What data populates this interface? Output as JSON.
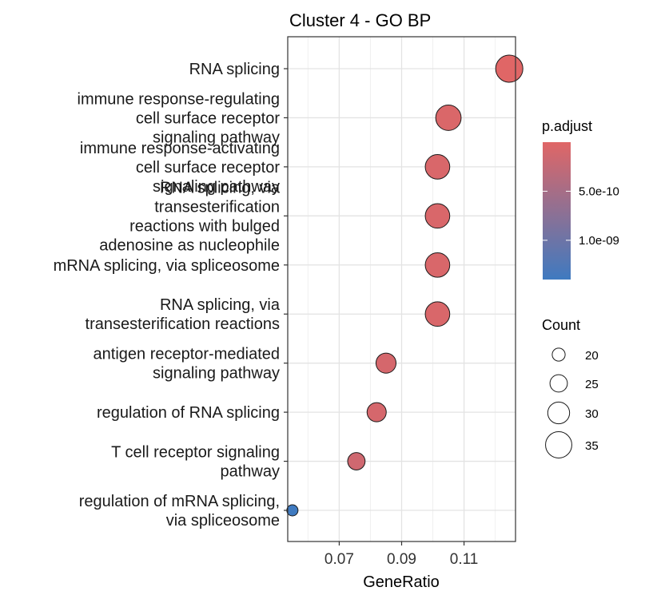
{
  "chart_data": {
    "type": "scatter",
    "title": "Cluster 4 - GO BP",
    "xlabel": "GeneRatio",
    "ylabel": "",
    "xlim": [
      0.0535,
      0.1265
    ],
    "xticks": [
      "0.07",
      "0.09",
      "0.11"
    ],
    "xtick_values": [
      0.07,
      0.09,
      0.11
    ],
    "grid": true,
    "points": [
      {
        "term": [
          "RNA splicing"
        ],
        "x": 0.1245,
        "count": 36,
        "p_adjust": 1e-12
      },
      {
        "term": [
          "immune response-regulating",
          "cell surface receptor",
          "signaling pathway"
        ],
        "x": 0.105,
        "count": 34,
        "p_adjust": 5e-11
      },
      {
        "term": [
          "immune response-activating",
          "cell surface receptor",
          "signaling pathway"
        ],
        "x": 0.1015,
        "count": 33,
        "p_adjust": 6e-11
      },
      {
        "term": [
          "RNA splicing, via",
          "transesterification",
          "reactions with bulged",
          "adenosine as nucleophile"
        ],
        "x": 0.1015,
        "count": 33,
        "p_adjust": 6e-11
      },
      {
        "term": [
          "mRNA splicing, via spliceosome"
        ],
        "x": 0.1015,
        "count": 33,
        "p_adjust": 6e-11
      },
      {
        "term": [
          "RNA splicing, via",
          "transesterification reactions"
        ],
        "x": 0.1015,
        "count": 33,
        "p_adjust": 6e-11
      },
      {
        "term": [
          "antigen receptor-mediated",
          "signaling pathway"
        ],
        "x": 0.085,
        "count": 28,
        "p_adjust": 1e-10
      },
      {
        "term": [
          "regulation of RNA splicing"
        ],
        "x": 0.082,
        "count": 27,
        "p_adjust": 1e-10
      },
      {
        "term": [
          "T cell receptor signaling",
          "pathway"
        ],
        "x": 0.0755,
        "count": 25,
        "p_adjust": 1.5e-10
      },
      {
        "term": [
          "regulation of mRNA splicing,",
          "via spliceosome"
        ],
        "x": 0.055,
        "count": 18,
        "p_adjust": 1.4e-09
      }
    ],
    "legend_color": {
      "title": "p.adjust",
      "labels": [
        "5.0e-10",
        "1.0e-09"
      ],
      "label_values": [
        5e-10,
        1e-09
      ],
      "range": [
        0,
        1.4e-09
      ],
      "low_color": "#e06666",
      "high_color": "#3f7ac0"
    },
    "legend_size": {
      "title": "Count",
      "labels": [
        "20",
        "25",
        "30",
        "35"
      ],
      "values": [
        20,
        25,
        30,
        35
      ]
    },
    "legend_placement": "right"
  }
}
